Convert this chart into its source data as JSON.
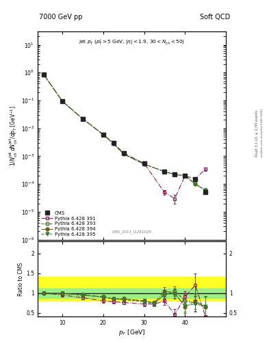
{
  "title_left": "7000 GeV pp",
  "title_right": "Soft QCD",
  "ylabel_main": "1/N$_{ch}^{jet}$ dN$_{ch}^{jet}$/dp$_{T}$ [GeV$^{-1}$]",
  "ylabel_ratio": "Ratio to CMS",
  "xlabel": "p$_{T}$ [GeV]",
  "xlim": [
    4,
    50
  ],
  "ylim_main": [
    1e-06,
    30
  ],
  "ylim_ratio": [
    0.4,
    2.3
  ],
  "cms_x": [
    5.5,
    10.0,
    15.0,
    20.0,
    22.5,
    25.0,
    30.0,
    35.0,
    37.5,
    40.0,
    42.5,
    45.0
  ],
  "cms_y": [
    0.85,
    0.095,
    0.022,
    0.006,
    0.003,
    0.0013,
    0.00055,
    0.00028,
    0.00022,
    0.0002,
    0.00015,
    5e-05
  ],
  "cms_yerr": [
    0.05,
    0.005,
    0.001,
    0.0003,
    0.00015,
    7e-05,
    3e-05,
    2e-05,
    2e-05,
    2e-05,
    1e-05,
    5e-06
  ],
  "p391_x": [
    5.5,
    10.0,
    15.0,
    20.0,
    22.5,
    25.0,
    30.0,
    35.0,
    37.5,
    40.0,
    42.5,
    45.0
  ],
  "p391_y": [
    0.85,
    0.095,
    0.022,
    0.006,
    0.003,
    0.0013,
    0.00055,
    5e-05,
    3e-05,
    0.0002,
    0.00015,
    0.00035
  ],
  "p391_yerr": [
    0.04,
    0.005,
    0.001,
    0.0003,
    0.00015,
    7e-05,
    3e-05,
    1e-05,
    1e-05,
    2e-05,
    1.5e-05,
    5e-05
  ],
  "p393_x": [
    5.5,
    10.0,
    15.0,
    20.0,
    22.5,
    25.0,
    30.0,
    35.0,
    37.5,
    40.0,
    42.5,
    45.0
  ],
  "p393_y": [
    0.85,
    0.095,
    0.022,
    0.006,
    0.0028,
    0.0012,
    0.00052,
    0.00028,
    0.00022,
    0.0002,
    0.0001,
    6e-05
  ],
  "p393_yerr": [
    0.04,
    0.005,
    0.001,
    0.0003,
    0.00014,
    6e-05,
    3e-05,
    2e-05,
    2e-05,
    2e-05,
    1e-05,
    6e-06
  ],
  "p394_x": [
    5.5,
    10.0,
    15.0,
    20.0,
    22.5,
    25.0,
    30.0,
    35.0,
    37.5,
    40.0,
    42.5,
    45.0
  ],
  "p394_y": [
    0.85,
    0.095,
    0.022,
    0.006,
    0.0028,
    0.0012,
    0.00052,
    0.00028,
    0.00022,
    0.0002,
    0.0001,
    6e-05
  ],
  "p394_yerr": [
    0.04,
    0.005,
    0.001,
    0.0003,
    0.00014,
    6e-05,
    3e-05,
    2e-05,
    2e-05,
    2e-05,
    1e-05,
    6e-06
  ],
  "p395_x": [
    5.5,
    10.0,
    15.0,
    20.0,
    22.5,
    25.0,
    30.0,
    35.0,
    37.5,
    40.0,
    42.5,
    45.0
  ],
  "p395_y": [
    0.85,
    0.095,
    0.022,
    0.006,
    0.0028,
    0.0012,
    0.00052,
    0.00028,
    0.00022,
    0.0002,
    0.0001,
    6e-05
  ],
  "p395_yerr": [
    0.04,
    0.005,
    0.001,
    0.0003,
    0.00014,
    6e-05,
    3e-05,
    2e-05,
    2e-05,
    2e-05,
    1e-05,
    6e-06
  ],
  "color_cms": "#222222",
  "color_391": "#8B1A4A",
  "color_393": "#4B6B2F",
  "color_394": "#6B5A14",
  "color_395": "#3A7A3A",
  "band_yellow_lo": 0.8,
  "band_yellow_hi": 1.4,
  "band_green_lo": 0.88,
  "band_green_hi": 1.12,
  "ratio_391_x": [
    5.5,
    10.0,
    15.0,
    20.0,
    22.5,
    25.0,
    30.0,
    32.5,
    35.0,
    37.5,
    40.0,
    42.5,
    45.0
  ],
  "ratio_391_y": [
    1.0,
    0.95,
    0.88,
    0.8,
    0.78,
    0.76,
    0.72,
    0.72,
    0.8,
    0.45,
    0.9,
    1.2,
    0.4
  ],
  "ratio_391_yerr": [
    0.04,
    0.05,
    0.05,
    0.05,
    0.05,
    0.05,
    0.06,
    0.06,
    0.1,
    0.15,
    0.15,
    0.3,
    0.3
  ],
  "ratio_393_x": [
    5.5,
    10.0,
    15.0,
    20.0,
    22.5,
    25.0,
    30.0,
    32.5,
    35.0,
    37.5,
    40.0,
    42.5,
    45.0
  ],
  "ratio_393_y": [
    1.0,
    0.99,
    0.95,
    0.9,
    0.85,
    0.85,
    0.8,
    0.75,
    0.95,
    1.05,
    0.8,
    0.75,
    0.65
  ],
  "ratio_393_yerr": [
    0.04,
    0.05,
    0.04,
    0.04,
    0.04,
    0.05,
    0.05,
    0.06,
    0.1,
    0.12,
    0.15,
    0.2,
    0.25
  ],
  "ratio_394_x": [
    5.5,
    10.0,
    15.0,
    20.0,
    22.5,
    25.0,
    30.0,
    32.5,
    35.0,
    37.5,
    40.0,
    42.5,
    45.0
  ],
  "ratio_394_y": [
    1.0,
    0.99,
    0.95,
    0.9,
    0.85,
    0.85,
    0.8,
    0.75,
    1.05,
    1.0,
    0.65,
    0.8,
    0.65
  ],
  "ratio_394_yerr": [
    0.04,
    0.05,
    0.04,
    0.04,
    0.04,
    0.05,
    0.05,
    0.06,
    0.1,
    0.12,
    0.15,
    0.2,
    0.25
  ],
  "ratio_395_x": [
    5.5,
    10.0,
    15.0,
    20.0,
    22.5,
    25.0,
    30.0,
    32.5,
    35.0,
    37.5,
    40.0,
    42.5,
    45.0
  ],
  "ratio_395_y": [
    1.0,
    0.99,
    0.95,
    0.9,
    0.85,
    0.83,
    0.78,
    0.72,
    0.98,
    0.98,
    0.68,
    0.72,
    0.67
  ],
  "ratio_395_yerr": [
    0.04,
    0.05,
    0.04,
    0.04,
    0.04,
    0.05,
    0.05,
    0.06,
    0.1,
    0.12,
    0.15,
    0.2,
    0.25
  ]
}
